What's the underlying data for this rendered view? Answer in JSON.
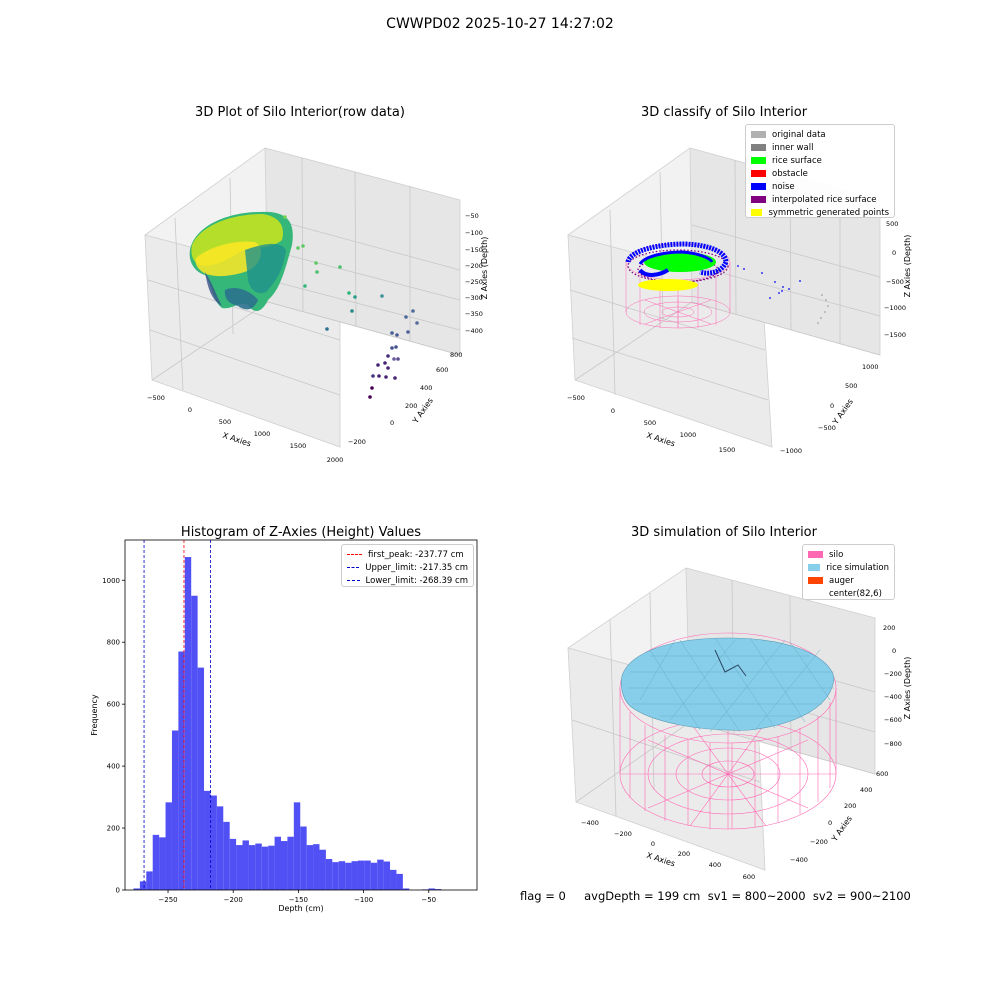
{
  "suptitle": "CWWPD02 2025-10-27 14:27:02",
  "footer": "flag = 0     avgDepth = 199 cm  sv1 = 800~2000  sv2 = 900~2100",
  "colors": {
    "histogram": "#5050f5",
    "first_peak": "#ff0000",
    "limits": "#0000cc",
    "silo": "#ff69b4",
    "rice_simulation": "#87ceeb",
    "auger": "#ff4500"
  },
  "chart_data": [
    {
      "type": "scatter",
      "title": "3D Plot of Silo Interior(row data)",
      "projection": "3d",
      "xlabel": "X Axies",
      "ylabel": "Y Axies",
      "zlabel": "Z Axies (Depth)",
      "xticks": [
        "−500",
        "0",
        "500",
        "1000",
        "1500",
        "2000"
      ],
      "yticks": [
        "−200",
        "0",
        "200",
        "400",
        "600",
        "800"
      ],
      "zticks": [
        "−50",
        "−100",
        "−150",
        "−200",
        "−250",
        "−300",
        "−350",
        "−400"
      ],
      "colormap": "viridis"
    },
    {
      "type": "scatter",
      "title": "3D classify of Silo Interior",
      "projection": "3d",
      "xlabel": "X Axies",
      "ylabel": "Y Axies",
      "zlabel": "Z Axies (Depth)",
      "xticks": [
        "−500",
        "0",
        "500",
        "1000",
        "1500"
      ],
      "yticks": [
        "−1000",
        "−500",
        "0",
        "500",
        "1000"
      ],
      "zticks": [
        "500",
        "0",
        "−500",
        "−1000",
        "−1500"
      ],
      "legend": [
        {
          "label": "original data",
          "color": "#b0b0b0"
        },
        {
          "label": "inner wall",
          "color": "#808080"
        },
        {
          "label": "rice surface",
          "color": "#00ff00"
        },
        {
          "label": "obstacle",
          "color": "#ff0000"
        },
        {
          "label": "noise",
          "color": "#0000ff"
        },
        {
          "label": "interpolated rice surface",
          "color": "#800080"
        },
        {
          "label": "symmetric generated points",
          "color": "#ffff00"
        }
      ],
      "legend_position": "upper right"
    },
    {
      "type": "bar",
      "title": "Histogram of Z-Axies (Height) Values",
      "xlabel": "Depth (cm)",
      "ylabel": "Frequency",
      "xlim": [
        -283,
        -13
      ],
      "ylim": [
        0,
        1130
      ],
      "xticks": [
        -250,
        -200,
        -150,
        -100,
        -50
      ],
      "xticklabels": [
        "−250",
        "−200",
        "−150",
        "−100",
        "−50"
      ],
      "yticks": [
        0,
        200,
        400,
        600,
        800,
        1000
      ],
      "yticklabels": [
        "0",
        "200",
        "400",
        "600",
        "800",
        "1000"
      ],
      "bin_width": 4.92,
      "bins_start": -276.5,
      "values": [
        5,
        28,
        60,
        178,
        170,
        283,
        515,
        770,
        1075,
        950,
        718,
        320,
        305,
        270,
        220,
        165,
        145,
        160,
        145,
        150,
        140,
        143,
        172,
        158,
        172,
        283,
        205,
        145,
        148,
        130,
        100,
        90,
        93,
        88,
        93,
        95,
        95,
        88,
        98,
        92,
        65,
        52,
        5,
        0,
        0,
        2,
        5,
        3
      ],
      "lines": [
        {
          "label": "first_peak: -237.77 cm",
          "x": -237.77,
          "color": "#ff0000"
        },
        {
          "label": "Upper_limit: -217.35 cm",
          "x": -217.35,
          "color": "#0000cc"
        },
        {
          "label": "Lower_limit: -268.39 cm",
          "x": -268.39,
          "color": "#0000cc"
        }
      ],
      "legend_position": "upper right"
    },
    {
      "type": "scatter",
      "title": "3D simulation of Silo Interior",
      "projection": "3d",
      "xlabel": "X Axies",
      "ylabel": "Y Axies",
      "zlabel": "Z Axies (Depth)",
      "xticks": [
        "−400",
        "−200",
        "0",
        "200",
        "400",
        "600"
      ],
      "yticks": [
        "−400",
        "−200",
        "0",
        "200",
        "400",
        "600"
      ],
      "zticks": [
        "200",
        "0",
        "−200",
        "−400",
        "−600",
        "−800"
      ],
      "legend": [
        {
          "label": "silo",
          "color": "#ff69b4"
        },
        {
          "label": "rice simulation",
          "color": "#87ceeb"
        },
        {
          "label": "auger",
          "color": "#ff4500"
        },
        {
          "label": "center(82,6)",
          "color": ""
        }
      ],
      "legend_position": "upper right"
    }
  ]
}
